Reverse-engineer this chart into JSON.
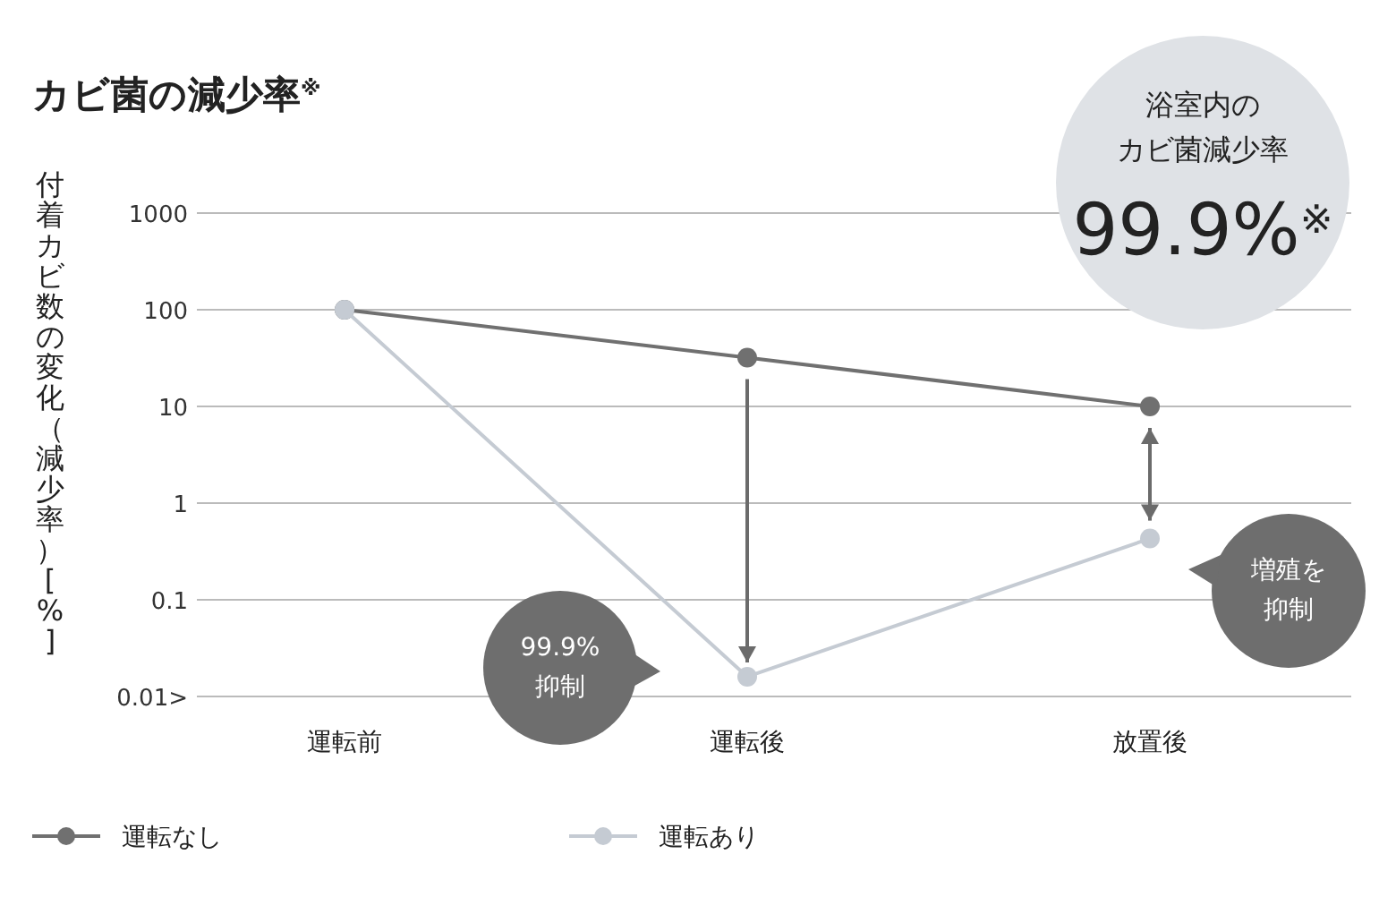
{
  "chart_data": {
    "type": "line",
    "title": "カビ菌の減少率$^{※}$",
    "ylabel": "付着カビ数の変化（減少率）[%]",
    "categories": [
      "運転前",
      "運転後",
      "放置後"
    ],
    "series": [
      {
        "name": "運転なし",
        "color": "#707070",
        "values": [
          100,
          32,
          10
        ]
      },
      {
        "name": "運転あり",
        "color": "#c5cbd3",
        "values": [
          100,
          0.016,
          0.43
        ]
      }
    ],
    "log": true,
    "ylim": [
      0.01,
      1000
    ],
    "yticks": [
      {
        "value": 0.01,
        "label": "0.01>"
      },
      0.1,
      1,
      10,
      100,
      1000
    ],
    "grid": "y",
    "marker": "circle",
    "line_style": "solid",
    "legend": "bottom left",
    "annotations": [
      "浴室内の",
      "カビ菌減少率",
      "99.9%$^{※}$",
      "99.9%",
      "抑制",
      "増殖を",
      "抑制"
    ]
  }
}
